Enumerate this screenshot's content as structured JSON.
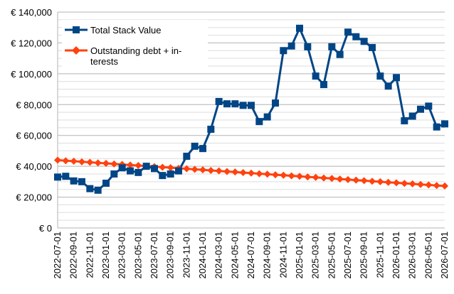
{
  "chart_data": {
    "type": "line",
    "ylim": [
      0,
      140000
    ],
    "y_ticks": [
      0,
      20000,
      40000,
      60000,
      80000,
      100000,
      120000,
      140000
    ],
    "y_tick_labels": [
      "€ 0",
      "€ 20,000",
      "€ 40,000",
      "€ 60,000",
      "€ 80,000",
      "€ 100,000",
      "€ 120,000",
      "€ 140,000"
    ],
    "x_tick_labels": [
      "2022-07-01",
      "2022-09-01",
      "2022-11-01",
      "2023-01-01",
      "2023-03-01",
      "2023-05-01",
      "2023-07-01",
      "2023-09-01",
      "2023-11-01",
      "2024-01-01",
      "2024-03-01",
      "2024-05-01",
      "2024-07-01",
      "2024-09-01",
      "2024-11-01",
      "2025-01-01",
      "2025-03-01",
      "2025-05-01",
      "2025-07-01",
      "2025-09-01",
      "2025-11-01",
      "2026-01-01",
      "2026-03-01",
      "2026-05-01",
      "2026-07-01"
    ],
    "grid": true,
    "legend_position": "top-left",
    "series": [
      {
        "name": "Total Stack Value",
        "color": "#004586",
        "marker": "square",
        "values": [
          33000,
          33500,
          30500,
          30000,
          25500,
          24500,
          29000,
          35000,
          39000,
          37000,
          36000,
          40000,
          38500,
          34000,
          35000,
          37000,
          46500,
          53000,
          51500,
          64000,
          82000,
          80500,
          80500,
          79500,
          79500,
          69000,
          72000,
          81000,
          115000,
          118000,
          129500,
          117500,
          98500,
          93000,
          117500,
          112500,
          127000,
          124000,
          121000,
          117000,
          98500,
          92000,
          97500,
          69500,
          72500,
          77000,
          79000,
          65500,
          67500
        ]
      },
      {
        "name": "Outstanding debt + in-terests",
        "legend_lines": [
          "Outstanding debt + in-",
          "terests"
        ],
        "color": "#ff420e",
        "marker": "diamond",
        "values": [
          44000,
          43600,
          43300,
          42900,
          42600,
          42200,
          41900,
          41500,
          41200,
          40800,
          40500,
          40100,
          39800,
          39400,
          39100,
          38700,
          38400,
          38000,
          37700,
          37300,
          37000,
          36600,
          36300,
          35900,
          35600,
          35200,
          34900,
          34500,
          34200,
          33800,
          33500,
          33100,
          32800,
          32400,
          32100,
          31700,
          31400,
          31000,
          30700,
          30300,
          30000,
          29600,
          29300,
          28900,
          28600,
          28200,
          27900,
          27500,
          27200
        ]
      }
    ]
  }
}
